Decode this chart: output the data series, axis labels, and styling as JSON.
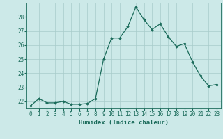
{
  "x": [
    0,
    1,
    2,
    3,
    4,
    5,
    6,
    7,
    8,
    9,
    10,
    11,
    12,
    13,
    14,
    15,
    16,
    17,
    18,
    19,
    20,
    21,
    22,
    23
  ],
  "y": [
    21.7,
    22.2,
    21.9,
    21.9,
    22.0,
    21.8,
    21.8,
    21.85,
    22.2,
    25.0,
    26.5,
    26.5,
    27.3,
    28.7,
    27.8,
    27.1,
    27.5,
    26.6,
    25.9,
    26.1,
    24.8,
    23.8,
    23.1,
    23.2
  ],
  "line_color": "#1a6b5a",
  "marker": "D",
  "markersize": 1.8,
  "linewidth": 0.9,
  "background_color": "#cce9e8",
  "grid_color": "#a8ccca",
  "xlabel": "Humidex (Indice chaleur)",
  "xlim": [
    -0.5,
    23.5
  ],
  "ylim": [
    21.5,
    29.0
  ],
  "yticks": [
    22,
    23,
    24,
    25,
    26,
    27,
    28
  ],
  "xtick_labels": [
    "0",
    "1",
    "2",
    "3",
    "4",
    "5",
    "6",
    "7",
    "8",
    "9",
    "10",
    "11",
    "12",
    "13",
    "14",
    "15",
    "16",
    "17",
    "18",
    "19",
    "20",
    "21",
    "22",
    "23"
  ],
  "tick_color": "#1a6b5a",
  "label_fontsize": 6.5,
  "tick_fontsize": 5.5
}
